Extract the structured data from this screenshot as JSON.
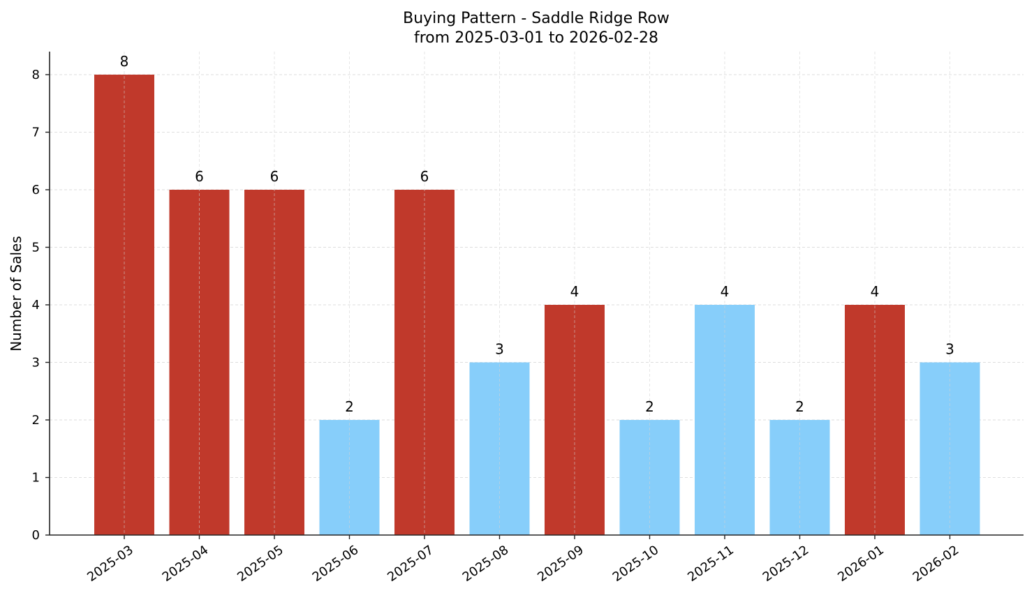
{
  "chart_data": {
    "type": "bar",
    "title": "Buying Pattern - Saddle Ridge Row",
    "subtitle": "from 2025-03-01 to 2026-02-28",
    "xlabel": "",
    "ylabel": "Number of Sales",
    "categories": [
      "2025-03",
      "2025-04",
      "2025-05",
      "2025-06",
      "2025-07",
      "2025-08",
      "2025-09",
      "2025-10",
      "2025-11",
      "2025-12",
      "2026-01",
      "2026-02"
    ],
    "values": [
      8,
      6,
      6,
      2,
      6,
      3,
      4,
      2,
      4,
      2,
      4,
      3
    ],
    "bar_colors": [
      "#C0392B",
      "#C0392B",
      "#C0392B",
      "#87CEFA",
      "#C0392B",
      "#87CEFA",
      "#C0392B",
      "#87CEFA",
      "#87CEFA",
      "#87CEFA",
      "#C0392B",
      "#87CEFA"
    ],
    "ylim": [
      0,
      8.4
    ],
    "yticks": [
      0,
      1,
      2,
      3,
      4,
      5,
      6,
      7,
      8
    ],
    "grid": true,
    "legend": null,
    "data_labels": true
  },
  "colors": {
    "high": "#C0392B",
    "low": "#87CEFA",
    "grid": "#d3d3d3",
    "axis": "#222222"
  }
}
